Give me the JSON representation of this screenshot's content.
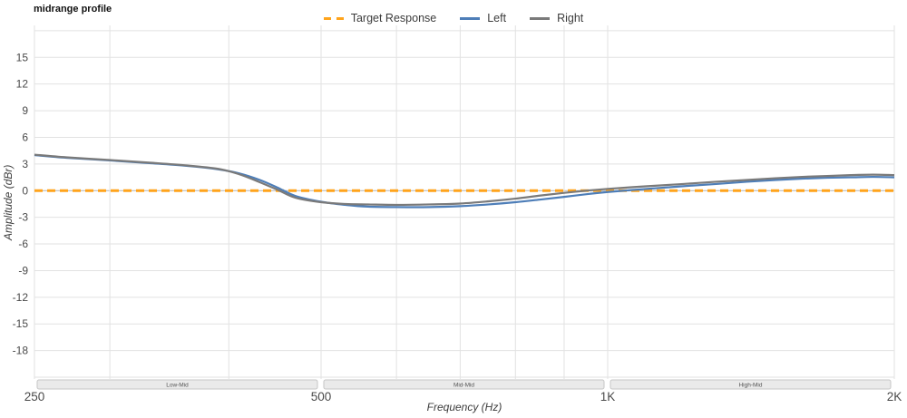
{
  "chart_data": {
    "type": "line",
    "title": "midrange profile",
    "xlabel": "Frequency (Hz)",
    "ylabel": "Amplitude (dBr)",
    "x_scale": "log",
    "xlim": [
      250,
      2000
    ],
    "ylim": [
      -21.2,
      18.6
    ],
    "grid": true,
    "legend_position": "top-center",
    "x_ticks": [
      {
        "v": 250,
        "label": "250"
      },
      {
        "v": 500,
        "label": "500"
      },
      {
        "v": 1000,
        "label": "1K"
      },
      {
        "v": 2000,
        "label": "2K"
      }
    ],
    "y_ticks": [
      {
        "v": 15,
        "label": "15"
      },
      {
        "v": 12,
        "label": "12"
      },
      {
        "v": 9,
        "label": "9"
      },
      {
        "v": 6,
        "label": "6"
      },
      {
        "v": 3,
        "label": "3"
      },
      {
        "v": 0,
        "label": "0"
      },
      {
        "v": -3,
        "label": "-3"
      },
      {
        "v": -6,
        "label": "-6"
      },
      {
        "v": -9,
        "label": "-9"
      },
      {
        "v": -12,
        "label": "-12"
      },
      {
        "v": -15,
        "label": "-15"
      },
      {
        "v": -18,
        "label": "-18"
      }
    ],
    "y_gridlines_unlabeled": [
      18,
      -21
    ],
    "x_gridlines": [
      250,
      300,
      400,
      500,
      600,
      700,
      800,
      900,
      1000,
      2000
    ],
    "zero_line_color": "#b3b3b3",
    "gridline_color": "#e2e2e2",
    "bands": [
      {
        "label": "Low-Mid",
        "from": 250,
        "to": 500
      },
      {
        "label": "Mid-Mid",
        "from": 500,
        "to": 1000
      },
      {
        "label": "High-Mid",
        "from": 1000,
        "to": 2000
      }
    ],
    "series": [
      {
        "name": "Target Response",
        "color": "#ffa41c",
        "style": "dashed",
        "width": 3,
        "x": [
          250,
          2000
        ],
        "y": [
          0,
          0
        ]
      },
      {
        "name": "Left",
        "color": "#4e7eb8",
        "style": "solid",
        "width": 2.2,
        "x": [
          250,
          270,
          300,
          330,
          360,
          390,
          410,
          430,
          450,
          470,
          500,
          530,
          560,
          600,
          650,
          700,
          750,
          800,
          850,
          900,
          950,
          1000,
          1100,
          1200,
          1300,
          1400,
          1500,
          1600,
          1700,
          1800,
          1900,
          2000
        ],
        "y": [
          4.0,
          3.7,
          3.4,
          3.1,
          2.8,
          2.4,
          1.95,
          1.25,
          0.35,
          -0.6,
          -1.25,
          -1.6,
          -1.8,
          -1.85,
          -1.85,
          -1.75,
          -1.55,
          -1.3,
          -1.0,
          -0.7,
          -0.4,
          -0.15,
          0.2,
          0.5,
          0.75,
          1.0,
          1.2,
          1.35,
          1.45,
          1.5,
          1.55,
          1.5
        ]
      },
      {
        "name": "Right",
        "color": "#7a7a7a",
        "style": "solid",
        "width": 2.2,
        "x": [
          250,
          270,
          300,
          330,
          360,
          390,
          410,
          430,
          450,
          470,
          500,
          530,
          560,
          600,
          650,
          700,
          750,
          800,
          850,
          900,
          950,
          1000,
          1100,
          1200,
          1300,
          1400,
          1500,
          1600,
          1700,
          1800,
          1900,
          2000
        ],
        "y": [
          4.05,
          3.75,
          3.45,
          3.15,
          2.85,
          2.45,
          1.85,
          1.0,
          0.1,
          -0.8,
          -1.3,
          -1.5,
          -1.55,
          -1.6,
          -1.55,
          -1.45,
          -1.2,
          -0.9,
          -0.55,
          -0.25,
          0.0,
          0.2,
          0.5,
          0.75,
          1.0,
          1.2,
          1.4,
          1.55,
          1.65,
          1.75,
          1.8,
          1.75
        ]
      }
    ]
  },
  "band_style": {
    "fill": "#eaeaea",
    "border": "#c6c6c6",
    "text_color": "#555555"
  },
  "text_colors": {
    "ticks": "#4a4a4a"
  }
}
